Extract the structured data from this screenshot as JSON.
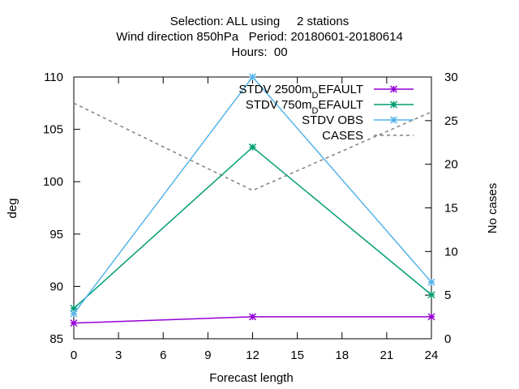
{
  "header": {
    "title_lines": [
      "Selection: ALL using     2 stations",
      "Wind direction 850hPa   Period: 20180601-20180614",
      "Hours:  00"
    ]
  },
  "chart_data": {
    "type": "line",
    "title": "Selection: ALL using     2 stations / Wind direction 850hPa   Period: 20180601-20180614 / Hours:  00",
    "xlabel": "Forecast length",
    "ylabel": "deg",
    "y2label": "No cases",
    "xlim": [
      0,
      24
    ],
    "ylim": [
      85,
      110
    ],
    "y2lim": [
      0,
      30
    ],
    "xticks": [
      0,
      3,
      6,
      9,
      12,
      15,
      18,
      21,
      24
    ],
    "yticks": [
      85,
      90,
      95,
      100,
      105,
      110
    ],
    "y2ticks": [
      0,
      5,
      10,
      15,
      20,
      25,
      30
    ],
    "legend_position": "top-right",
    "grid": false,
    "series": [
      {
        "name_main": "STDV 2500m",
        "name_sub": "D",
        "name_tail": "EFAULT",
        "axis": "y1",
        "color": "#9400d3",
        "marker": "x-star",
        "dash": "solid",
        "x": [
          0,
          12,
          24
        ],
        "values": [
          86.5,
          87.1,
          87.1
        ]
      },
      {
        "name_main": "STDV 750m",
        "name_sub": "D",
        "name_tail": "EFAULT",
        "axis": "y1",
        "color": "#009e73",
        "marker": "x-star",
        "dash": "solid",
        "x": [
          0,
          12,
          24
        ],
        "values": [
          87.9,
          103.3,
          89.2
        ]
      },
      {
        "name_main": "STDV OBS",
        "name_sub": "",
        "name_tail": "",
        "axis": "y1",
        "color": "#56b4e9",
        "marker": "x-star",
        "dash": "solid",
        "x": [
          0,
          12,
          24
        ],
        "values": [
          87.4,
          110.0,
          90.4
        ]
      },
      {
        "name_main": "CASES",
        "name_sub": "",
        "name_tail": "",
        "axis": "y2",
        "color": "#808080",
        "marker": "none",
        "dash": "dashed",
        "x": [
          0,
          12,
          24
        ],
        "values": [
          27.0,
          17.0,
          26.0
        ]
      }
    ]
  }
}
